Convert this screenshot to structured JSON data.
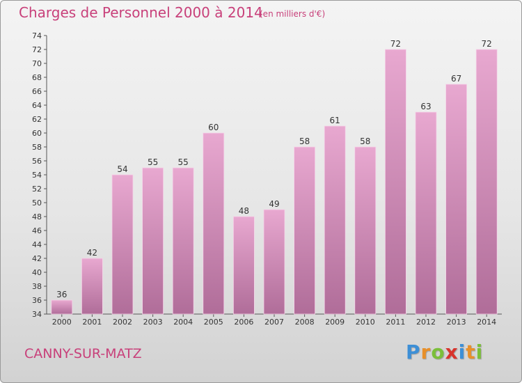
{
  "header": {
    "title": "Charges de Personnel 2000 à 2014",
    "subtitle": "(en milliers d'€)"
  },
  "footer": {
    "commune": "CANNY-SUR-MATZ",
    "brand": "Proxiti",
    "brand_letters": [
      {
        "char": "P",
        "color": "#3d8fd6"
      },
      {
        "char": "r",
        "color": "#e8902a"
      },
      {
        "char": "o",
        "color": "#7bbf3a"
      },
      {
        "char": "x",
        "color": "#d8342c"
      },
      {
        "char": "i",
        "color": "#3d8fd6"
      },
      {
        "char": "t",
        "color": "#e8902a"
      },
      {
        "char": "i",
        "color": "#7bbf3a"
      }
    ]
  },
  "colors": {
    "bar_light": "#e8a8d0",
    "bar_dark": "#b06d99",
    "title": "#c8407a",
    "text": "#333333",
    "axis": "#555555"
  },
  "chart_data": {
    "type": "bar",
    "title": "Charges de Personnel 2000 à 2014",
    "subtitle": "(en milliers d'€)",
    "categories": [
      "2000",
      "2001",
      "2002",
      "2003",
      "2004",
      "2005",
      "2006",
      "2007",
      "2008",
      "2009",
      "2010",
      "2011",
      "2012",
      "2013",
      "2014"
    ],
    "values": [
      36,
      42,
      54,
      55,
      55,
      60,
      48,
      49,
      58,
      61,
      58,
      72,
      63,
      67,
      72
    ],
    "ylim": [
      34,
      74
    ],
    "yticks": [
      34,
      36,
      38,
      40,
      42,
      44,
      46,
      48,
      50,
      52,
      54,
      56,
      58,
      60,
      62,
      64,
      66,
      68,
      70,
      72,
      74
    ],
    "xlabel": "",
    "ylabel": "",
    "grid": false,
    "data_labels": true
  }
}
